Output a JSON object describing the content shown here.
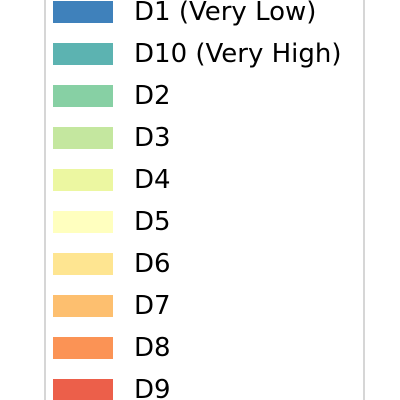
{
  "chart_data": {
    "type": "legend",
    "legend": {
      "entries": [
        {
          "label": "D1 (Very Low)",
          "color": "#3f81bb"
        },
        {
          "label": "D10 (Very High)",
          "color": "#5cb3b1"
        },
        {
          "label": "D2",
          "color": "#87d0a4"
        },
        {
          "label": "D3",
          "color": "#c4e79f"
        },
        {
          "label": "D4",
          "color": "#ecf7a1"
        },
        {
          "label": "D5",
          "color": "#ffffbf"
        },
        {
          "label": "D6",
          "color": "#fee591"
        },
        {
          "label": "D7",
          "color": "#fdbf6f"
        },
        {
          "label": "D8",
          "color": "#fb9355"
        },
        {
          "label": "D9",
          "color": "#ec5f4a"
        }
      ]
    }
  }
}
